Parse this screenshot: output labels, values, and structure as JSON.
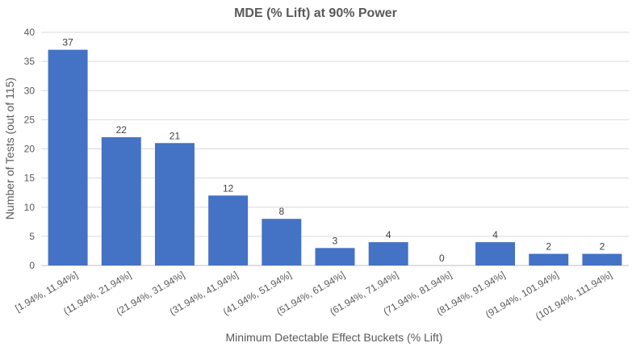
{
  "chart_data": {
    "type": "bar",
    "title": "MDE (% Lift) at 90% Power",
    "xlabel": "Minimum Detectable Effect Buckets (% Lift)",
    "ylabel": "Number of Tests (out of 115)",
    "ylim": [
      0,
      40
    ],
    "yticks": [
      0,
      5,
      10,
      15,
      20,
      25,
      30,
      35,
      40
    ],
    "grid": true,
    "bar_color": "#4472C4",
    "categories": [
      "[1.94%, 11.94%]",
      "(11.94%, 21.94%]",
      "(21.94%, 31.94%]",
      "(31.94%, 41.94%]",
      "(41.94%, 51.94%]",
      "(51.94%, 61.94%]",
      "(61.94%, 71.94%]",
      "(71.94%, 81.94%]",
      "(81.94%, 91.94%]",
      "(91.94%, 101.94%]",
      "(101.94%, 111.94%]"
    ],
    "values": [
      37,
      22,
      21,
      12,
      8,
      3,
      4,
      0,
      4,
      2,
      2
    ]
  }
}
